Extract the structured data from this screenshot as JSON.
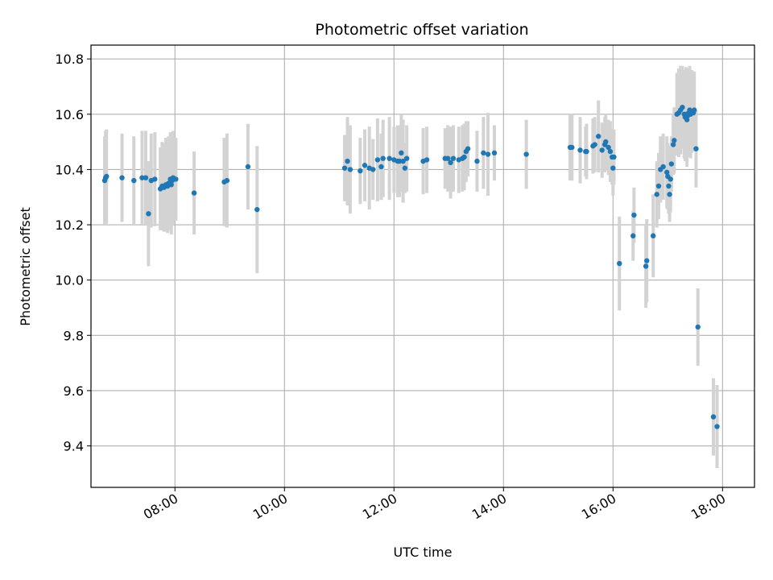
{
  "chart_data": {
    "type": "scatter",
    "title": "Photometric offset variation",
    "xlabel": "UTC time",
    "ylabel": "Photometric offset",
    "xlim": [
      "06:28",
      "18:35"
    ],
    "ylim": [
      9.25,
      10.85
    ],
    "xticks": [
      "08:00",
      "10:00",
      "12:00",
      "14:00",
      "16:00",
      "18:00"
    ],
    "yticks": [
      "9.4",
      "9.6",
      "9.8",
      "10.0",
      "10.2",
      "10.4",
      "10.6",
      "10.8"
    ],
    "grid": true,
    "colors": {
      "point": "#1f77b4",
      "errorbar": "#d3d3d3"
    },
    "series": [
      {
        "points": [
          {
            "x": "06:43",
            "y": 10.36,
            "err": 0.16
          },
          {
            "x": "06:44",
            "y": 10.37,
            "err": 0.17
          },
          {
            "x": "06:45",
            "y": 10.375,
            "err": 0.17
          },
          {
            "x": "07:02",
            "y": 10.37,
            "err": 0.16
          },
          {
            "x": "07:15",
            "y": 10.36,
            "err": 0.16
          },
          {
            "x": "07:24",
            "y": 10.37,
            "err": 0.17
          },
          {
            "x": "07:28",
            "y": 10.37,
            "err": 0.17
          },
          {
            "x": "07:31",
            "y": 10.24,
            "err": 0.19
          },
          {
            "x": "07:34",
            "y": 10.36,
            "err": 0.17
          },
          {
            "x": "07:38",
            "y": 10.365,
            "err": 0.17
          },
          {
            "x": "07:44",
            "y": 10.33,
            "err": 0.15
          },
          {
            "x": "07:46",
            "y": 10.34,
            "err": 0.16
          },
          {
            "x": "07:48",
            "y": 10.335,
            "err": 0.16
          },
          {
            "x": "07:50",
            "y": 10.345,
            "err": 0.17
          },
          {
            "x": "07:52",
            "y": 10.34,
            "err": 0.17
          },
          {
            "x": "07:53",
            "y": 10.35,
            "err": 0.17
          },
          {
            "x": "07:55",
            "y": 10.365,
            "err": 0.17
          },
          {
            "x": "07:56",
            "y": 10.345,
            "err": 0.18
          },
          {
            "x": "07:57",
            "y": 10.36,
            "err": 0.16
          },
          {
            "x": "07:58",
            "y": 10.37,
            "err": 0.17
          },
          {
            "x": "08:01",
            "y": 10.365,
            "err": 0.15
          },
          {
            "x": "08:21",
            "y": 10.315,
            "err": 0.15
          },
          {
            "x": "08:54",
            "y": 10.355,
            "err": 0.16
          },
          {
            "x": "08:57",
            "y": 10.36,
            "err": 0.17
          },
          {
            "x": "09:20",
            "y": 10.41,
            "err": 0.155
          },
          {
            "x": "09:30",
            "y": 10.255,
            "err": 0.23
          },
          {
            "x": "11:06",
            "y": 10.405,
            "err": 0.12
          },
          {
            "x": "11:09",
            "y": 10.43,
            "err": 0.16
          },
          {
            "x": "11:12",
            "y": 10.4,
            "err": 0.16
          },
          {
            "x": "11:23",
            "y": 10.395,
            "err": 0.12
          },
          {
            "x": "11:28",
            "y": 10.415,
            "err": 0.13
          },
          {
            "x": "11:33",
            "y": 10.405,
            "err": 0.15
          },
          {
            "x": "11:37",
            "y": 10.4,
            "err": 0.11
          },
          {
            "x": "11:42",
            "y": 10.435,
            "err": 0.15
          },
          {
            "x": "11:46",
            "y": 10.41,
            "err": 0.12
          },
          {
            "x": "11:48",
            "y": 10.44,
            "err": 0.14
          },
          {
            "x": "11:55",
            "y": 10.44,
            "err": 0.15
          },
          {
            "x": "12:00",
            "y": 10.435,
            "err": 0.12
          },
          {
            "x": "12:04",
            "y": 10.43,
            "err": 0.13
          },
          {
            "x": "12:06",
            "y": 10.43,
            "err": 0.13
          },
          {
            "x": "12:08",
            "y": 10.46,
            "err": 0.14
          },
          {
            "x": "12:10",
            "y": 10.43,
            "err": 0.15
          },
          {
            "x": "12:12",
            "y": 10.405,
            "err": 0.09
          },
          {
            "x": "12:14",
            "y": 10.44,
            "err": 0.12
          },
          {
            "x": "12:32",
            "y": 10.43,
            "err": 0.12
          },
          {
            "x": "12:36",
            "y": 10.435,
            "err": 0.12
          },
          {
            "x": "12:56",
            "y": 10.44,
            "err": 0.11
          },
          {
            "x": "12:59",
            "y": 10.44,
            "err": 0.12
          },
          {
            "x": "13:02",
            "y": 10.425,
            "err": 0.13
          },
          {
            "x": "13:05",
            "y": 10.44,
            "err": 0.12
          },
          {
            "x": "13:11",
            "y": 10.435,
            "err": 0.12
          },
          {
            "x": "13:15",
            "y": 10.44,
            "err": 0.12
          },
          {
            "x": "13:17",
            "y": 10.445,
            "err": 0.12
          },
          {
            "x": "13:19",
            "y": 10.465,
            "err": 0.11
          },
          {
            "x": "13:21",
            "y": 10.475,
            "err": 0.1
          },
          {
            "x": "13:31",
            "y": 10.43,
            "err": 0.11
          },
          {
            "x": "13:38",
            "y": 10.46,
            "err": 0.13
          },
          {
            "x": "13:43",
            "y": 10.455,
            "err": 0.15
          },
          {
            "x": "13:50",
            "y": 10.46,
            "err": 0.1
          },
          {
            "x": "14:25",
            "y": 10.455,
            "err": 0.125
          },
          {
            "x": "15:13",
            "y": 10.48,
            "err": 0.12
          },
          {
            "x": "15:15",
            "y": 10.48,
            "err": 0.12
          },
          {
            "x": "15:24",
            "y": 10.47,
            "err": 0.12
          },
          {
            "x": "15:30",
            "y": 10.465,
            "err": 0.09
          },
          {
            "x": "15:31",
            "y": 10.465,
            "err": 0.1
          },
          {
            "x": "15:38",
            "y": 10.485,
            "err": 0.1
          },
          {
            "x": "15:40",
            "y": 10.49,
            "err": 0.1
          },
          {
            "x": "15:44",
            "y": 10.52,
            "err": 0.13
          },
          {
            "x": "15:48",
            "y": 10.47,
            "err": 0.1
          },
          {
            "x": "15:51",
            "y": 10.49,
            "err": 0.1
          },
          {
            "x": "15:52",
            "y": 10.5,
            "err": 0.1
          },
          {
            "x": "15:55",
            "y": 10.48,
            "err": 0.1
          },
          {
            "x": "15:57",
            "y": 10.465,
            "err": 0.11
          },
          {
            "x": "15:59",
            "y": 10.445,
            "err": 0.1
          },
          {
            "x": "16:00",
            "y": 10.405,
            "err": 0.1
          },
          {
            "x": "16:01",
            "y": 10.445,
            "err": 0.1
          },
          {
            "x": "16:07",
            "y": 10.06,
            "err": 0.17
          },
          {
            "x": "16:22",
            "y": 10.16,
            "err": 0.09
          },
          {
            "x": "16:23",
            "y": 10.235,
            "err": 0.1
          },
          {
            "x": "16:36",
            "y": 10.05,
            "err": 0.15
          },
          {
            "x": "16:37",
            "y": 10.07,
            "err": 0.15
          },
          {
            "x": "16:44",
            "y": 10.16,
            "err": 0.15
          },
          {
            "x": "16:48",
            "y": 10.31,
            "err": 0.12
          },
          {
            "x": "16:50",
            "y": 10.34,
            "err": 0.12
          },
          {
            "x": "16:52",
            "y": 10.4,
            "err": 0.12
          },
          {
            "x": "16:55",
            "y": 10.41,
            "err": 0.12
          },
          {
            "x": "16:59",
            "y": 10.39,
            "err": 0.13
          },
          {
            "x": "17:00",
            "y": 10.375,
            "err": 0.12
          },
          {
            "x": "17:01",
            "y": 10.34,
            "err": 0.1
          },
          {
            "x": "17:02",
            "y": 10.31,
            "err": 0.1
          },
          {
            "x": "17:03",
            "y": 10.365,
            "err": 0.12
          },
          {
            "x": "17:04",
            "y": 10.42,
            "err": 0.1
          },
          {
            "x": "17:06",
            "y": 10.49,
            "err": 0.11
          },
          {
            "x": "17:07",
            "y": 10.505,
            "err": 0.12
          },
          {
            "x": "17:10",
            "y": 10.6,
            "err": 0.15
          },
          {
            "x": "17:12",
            "y": 10.605,
            "err": 0.16
          },
          {
            "x": "17:14",
            "y": 10.615,
            "err": 0.16
          },
          {
            "x": "17:16",
            "y": 10.625,
            "err": 0.15
          },
          {
            "x": "17:18",
            "y": 10.6,
            "err": 0.16
          },
          {
            "x": "17:19",
            "y": 10.59,
            "err": 0.16
          },
          {
            "x": "17:20",
            "y": 10.6,
            "err": 0.17
          },
          {
            "x": "17:21",
            "y": 10.58,
            "err": 0.17
          },
          {
            "x": "17:22",
            "y": 10.595,
            "err": 0.15
          },
          {
            "x": "17:23",
            "y": 10.605,
            "err": 0.16
          },
          {
            "x": "17:24",
            "y": 10.615,
            "err": 0.16
          },
          {
            "x": "17:25",
            "y": 10.6,
            "err": 0.16
          },
          {
            "x": "17:26",
            "y": 10.61,
            "err": 0.15
          },
          {
            "x": "17:28",
            "y": 10.605,
            "err": 0.14
          },
          {
            "x": "17:29",
            "y": 10.615,
            "err": 0.14
          },
          {
            "x": "17:31",
            "y": 10.475,
            "err": 0.14
          },
          {
            "x": "17:33",
            "y": 9.83,
            "err": 0.14
          },
          {
            "x": "17:50",
            "y": 9.505,
            "err": 0.14
          },
          {
            "x": "17:54",
            "y": 9.47,
            "err": 0.15
          }
        ]
      }
    ]
  }
}
